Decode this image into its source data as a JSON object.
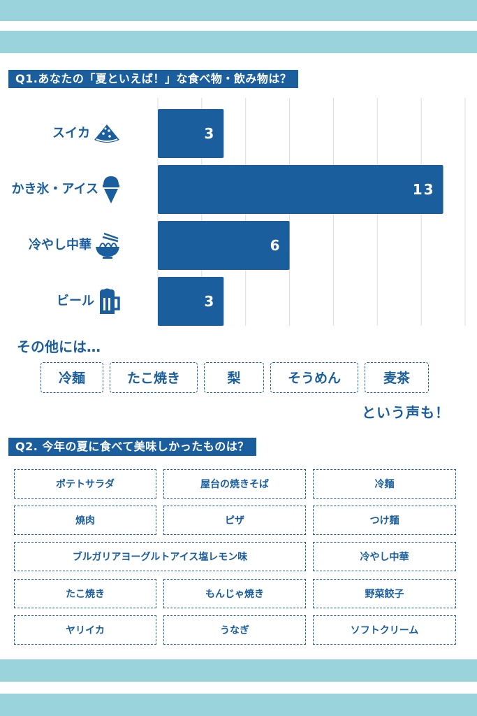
{
  "q1": {
    "title": "Q1.あなたの「夏といえば！」な食べ物・飲み物は？",
    "other_title": "その他には…",
    "others": [
      "冷麺",
      "たこ焼き",
      "梨",
      "そうめん",
      "麦茶"
    ],
    "voice": "という声も！"
  },
  "chart_data": {
    "type": "bar",
    "orientation": "horizontal",
    "categories": [
      "スイカ",
      "かき氷・アイス",
      "冷やし中華",
      "ビール"
    ],
    "category_icons": [
      "watermelon-icon",
      "ice-cream-icon",
      "noodle-bowl-icon",
      "beer-mug-icon"
    ],
    "values": [
      3,
      13,
      6,
      3
    ],
    "xlim": [
      0,
      14
    ],
    "grid": true,
    "bar_color": "#1a5e9e",
    "label_color": "#ffffff"
  },
  "q2": {
    "title": "Q2. 今年の夏に食べて美味しかったものは？",
    "answers": [
      "ポテトサラダ",
      "屋台の焼きそば",
      "冷麺",
      "焼肉",
      "ピザ",
      "つけ麺",
      "ブルガリアヨーグルトアイス塩レモン味",
      "冷やし中華",
      "たこ焼き",
      "もんじゃ焼き",
      "野菜餃子",
      "ヤリイカ",
      "うなぎ",
      "ソフトクリーム"
    ]
  },
  "colors": {
    "accent": "#1a5e9e",
    "stripe": "#9bd3dc"
  }
}
